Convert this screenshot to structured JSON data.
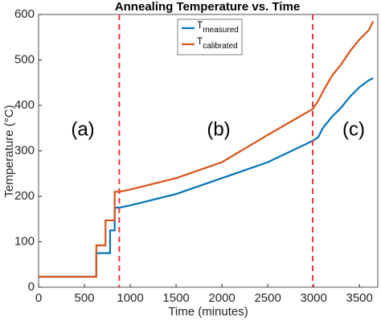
{
  "chart_data": {
    "type": "line",
    "title": "Annealing Temperature vs. Time",
    "x_label": "Time (minutes)",
    "y_label": "Temperature (°C)",
    "x": [
      0,
      630,
      630,
      730,
      730,
      780,
      780,
      830,
      830,
      880,
      1000,
      1500,
      2000,
      2500,
      2990,
      3050,
      3100,
      3200,
      3300,
      3400,
      3500,
      3600,
      3650
    ],
    "series": [
      {
        "name": "Tmeasured",
        "color": "#0072bd",
        "values": [
          23,
          23,
          75,
          75,
          75,
          75,
          125,
          125,
          175,
          175,
          180,
          205,
          240,
          275,
          322,
          330,
          350,
          375,
          395,
          420,
          440,
          455,
          460
        ]
      },
      {
        "name": "Tcalibrated",
        "color": "#d95319",
        "values": [
          23,
          23,
          92,
          92,
          147,
          147,
          147,
          147,
          210,
          210,
          215,
          240,
          275,
          335,
          392,
          410,
          430,
          465,
          490,
          520,
          545,
          565,
          585
        ]
      }
    ],
    "vlines": [
      880,
      2990
    ],
    "vline_color": "#e8383d",
    "annotations": [
      "(a)",
      "(b)",
      "(c)"
    ],
    "xlim": [
      0,
      3700
    ],
    "xticks": [
      0,
      500,
      1000,
      1500,
      2000,
      2500,
      3000,
      3500
    ],
    "ylim": [
      0,
      600
    ],
    "yticks": [
      0,
      100,
      200,
      300,
      400,
      500,
      600
    ],
    "legend": "top-center"
  }
}
